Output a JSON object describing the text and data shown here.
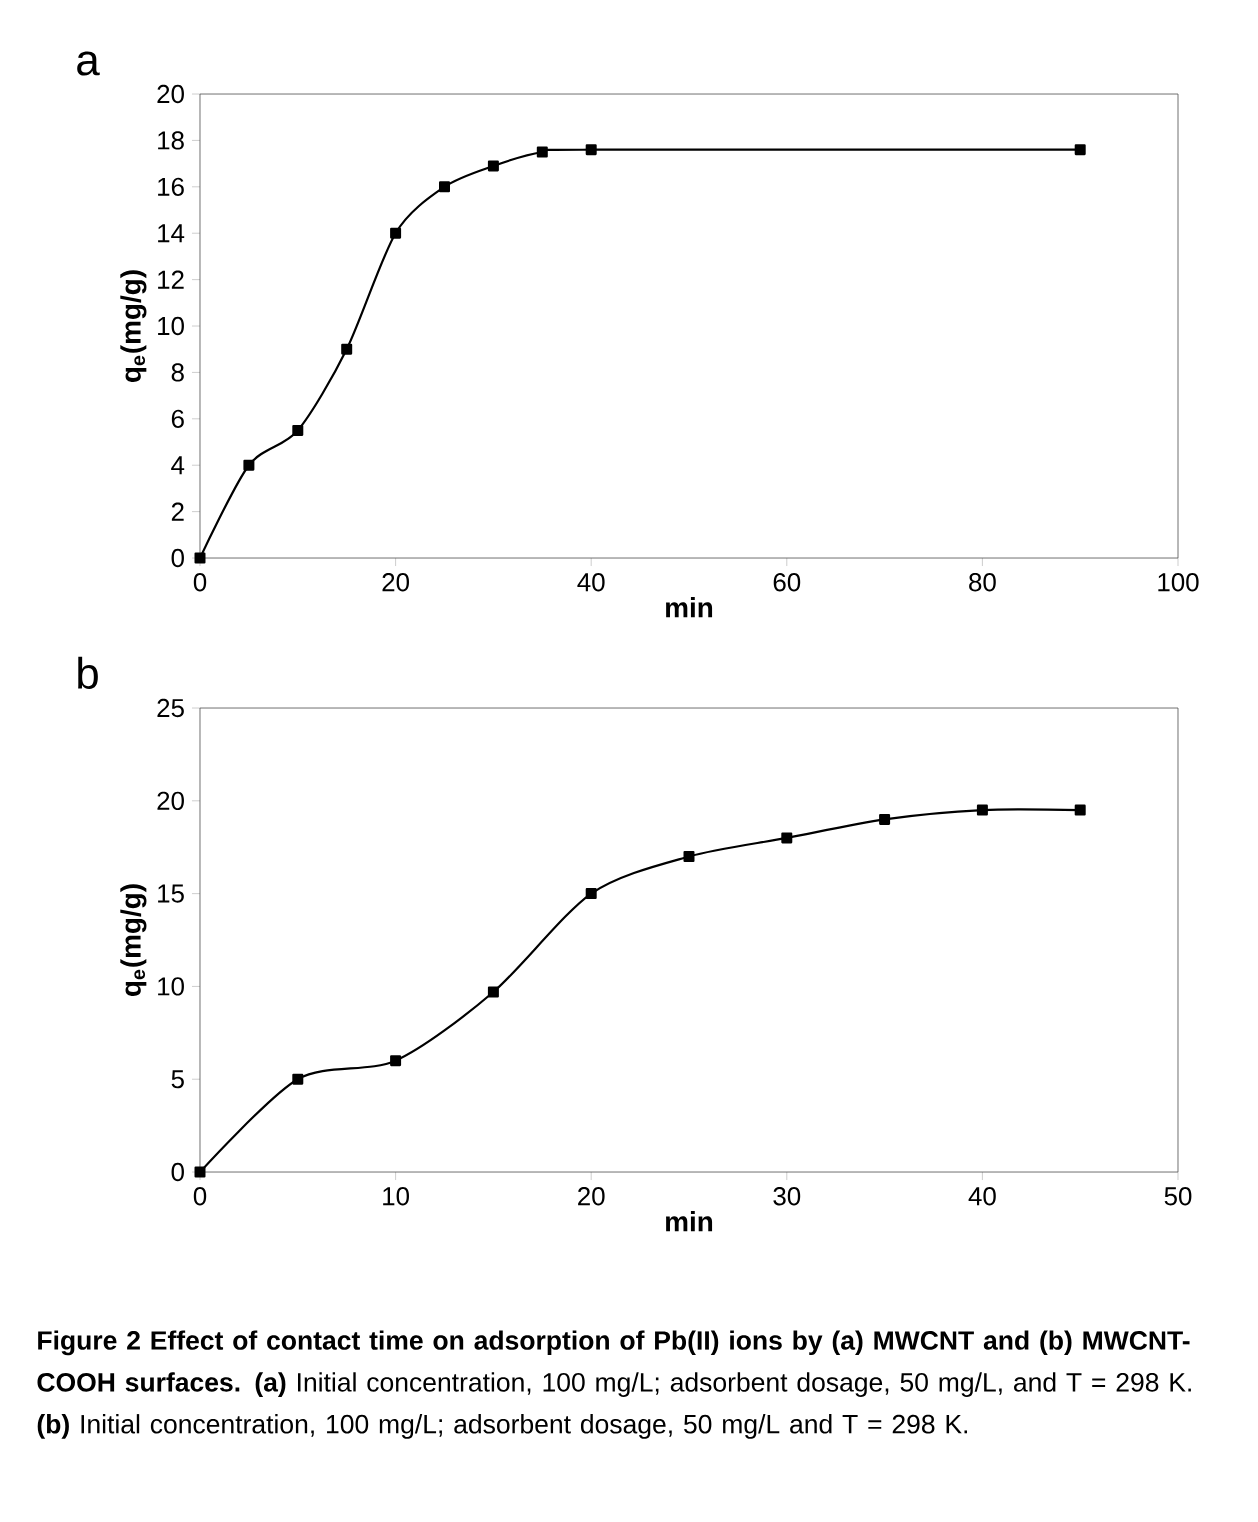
{
  "chart_data": [
    {
      "type": "line",
      "title": "a",
      "xlabel": "min",
      "ylabel": "q$_{e}$(mg/g)",
      "color": "#000000",
      "marker": "square",
      "x": [
        0,
        5,
        10,
        15,
        20,
        25,
        30,
        35,
        40,
        90
      ],
      "values": [
        0,
        4,
        5.5,
        9,
        14,
        16,
        16.9,
        17.5,
        17.6,
        17.6
      ],
      "xlim": [
        0,
        100
      ],
      "ylim": [
        0,
        20
      ],
      "xticks": [
        0,
        20,
        40,
        60,
        80,
        100
      ],
      "yticks": [
        0,
        2,
        4,
        6,
        8,
        10,
        12,
        14,
        16,
        18,
        20
      ]
    },
    {
      "type": "line",
      "title": "b",
      "xlabel": "min",
      "ylabel": "q$_{e}$(mg/g)",
      "color": "#000000",
      "marker": "square",
      "x": [
        0,
        5,
        10,
        15,
        20,
        25,
        30,
        35,
        40,
        45
      ],
      "values": [
        0,
        5,
        6,
        9.7,
        15,
        17,
        18,
        19,
        19.5,
        19.5
      ],
      "xlim": [
        0,
        50
      ],
      "ylim": [
        0,
        25
      ],
      "xticks": [
        0,
        10,
        20,
        30,
        40,
        50
      ],
      "yticks": [
        0,
        5,
        10,
        15,
        20,
        25
      ],
      "annotations": [
        "**Figure 2 Effect of contact time on adsorption of Pb(II) ions by (a) MWCNT and (b) MWCNT-COOH surfaces.** **(a)** Initial concentration, 100 mg/L; adsorbent dosage, 50 mg/L, and T = 298 K. **(b)** Initial concentration, 100 mg/L; adsorbent dosage, 50 mg/L and T = 298 K."
      ]
    }
  ]
}
